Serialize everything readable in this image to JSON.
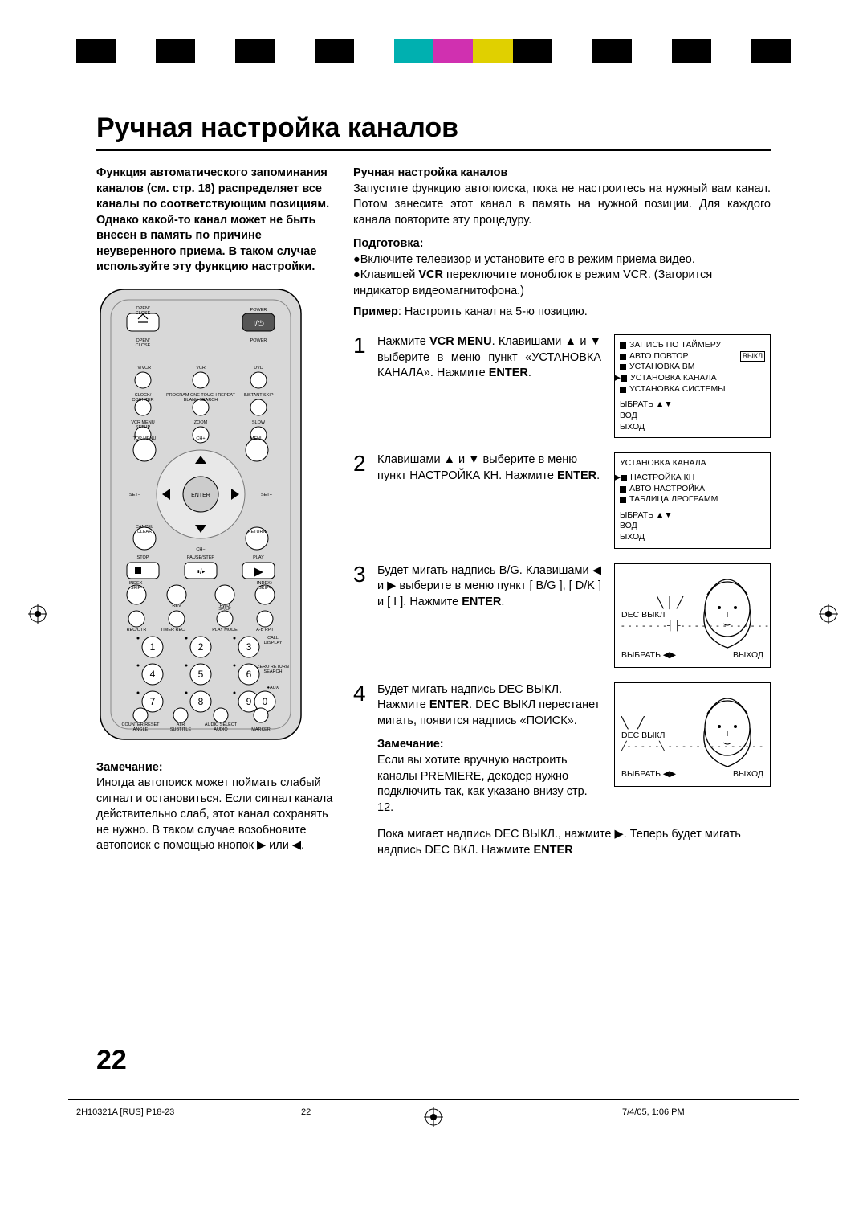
{
  "colorbar": [
    "#000000",
    "#ffffff",
    "#000000",
    "#ffffff",
    "#000000",
    "#ffffff",
    "#000000",
    "#ffffff",
    "#00b0b0",
    "#d030b0",
    "#e0d000",
    "#000000",
    "#ffffff",
    "#000000",
    "#ffffff",
    "#000000",
    "#ffffff",
    "#000000"
  ],
  "title": "Ручная настройка каналов",
  "left": {
    "intro": "Функция автоматического запоминания каналов (см. стр. 18) распределяет все каналы по соответствующим позициям. Однако какой-то канал может не быть внесен в память по причине неуверенного приема. В таком случае используйте эту функцию настройки.",
    "note_head": "Замечание:",
    "note_body": "Иногда автопоиск может поймать слабый сигнал и остановиться. Если сигнал канала действительно слаб, этот канал сохранять не нужно. В таком случае возобновите автопоиск с помощью кнопок ▶ или ◀."
  },
  "right": {
    "h1": "Ручная настройка каналов",
    "p1": "Запустите функцию автопоиска, пока не настроитесь на нужный вам канал. Потом занесите этот канал в память на нужной позиции. Для каждого канала повторите эту процедуру.",
    "h2": "Подготовка:",
    "b1": "Включите телевизор и установите его в режим приема видео.",
    "b2a": "Клавишей ",
    "b2b": "VCR",
    "b2c": " переключите моноблок в режим VCR. (Загорится индикатор видеомагнитофона.)",
    "example_a": "Пример",
    "example_b": ": Настроить канал на 5-ю позицию.",
    "step1_a": "Нажмите ",
    "step1_b": "VCR MENU",
    "step1_c": ". Клавишами ▲ и ▼ выберите в меню пункт «УСТАНОВКА КАНАЛА». Нажмите ",
    "step1_d": "ENTER",
    "step1_e": ".",
    "step2_a": "Клавишами ▲ и ▼ выберите в меню пункт НАСТРОЙКА КН. Нажмите  ",
    "step2_b": "ENTER",
    "step2_c": ".",
    "step3_a": "Будет мигать надпись B/G. Клавишами ◀ и ▶ выберите в меню пункт [ B/G ], [ D/K ] и [ I ]. Нажмите  ",
    "step3_b": "ENTER",
    "step3_c": ".",
    "step4_a": "Будет мигать надпись DEC ВЫКЛ. Нажмите ",
    "step4_b": "ENTER",
    "step4_c": ". DEC ВЫКЛ перестанет мигать, появится надпись «ПОИСК».",
    "note_head": "Замечание:",
    "note_body": "Если вы хотите вручную настроить каналы PREMIERE, декодер нужно подключить так, как указано внизу стр. 12.",
    "tail_a": "Пока мигает надпись DEC ВЫКЛ., нажмите ▶. Теперь будет мигать надпись DEC ВКЛ. Нажмите  ",
    "tail_b": "ENTER"
  },
  "menu1": {
    "l1": "ЗАПИСЬ ПО ТАЙМЕРУ",
    "l2": "АВТО ПОВТОР",
    "tag": "ВЫКЛ",
    "l3": "УСТАНОВКА ВМ",
    "l4": "УСТАНОВКА КАНАЛА",
    "l5": "УСТАНОВКА СИСТЕМЫ",
    "s1": "ЫБРАТЬ  ▲▼",
    "s2": "ВОД",
    "s3": "ЫХОД"
  },
  "menu2": {
    "title": "УСТАНОВКА КАНАЛА",
    "l1": "НАСТРОЙКА КН",
    "l2": "АВТО НАСТРОЙКА",
    "l3": "ТАБЛИЦА ЛРОГРАММ",
    "s1": "ЫБРАТЬ  ▲▼",
    "s2": "ВОД",
    "s3": "ЫХОД"
  },
  "screen": {
    "dec": "DEC ВЫКЛ",
    "select": "ВЫБРАТЬ ◀▶",
    "exit": "ВЫХОД"
  },
  "page_number": "22",
  "footer": {
    "left": "2H10321A [RUS] P18-23",
    "mid": "22",
    "right": "7/4/05, 1:06 PM"
  },
  "remote": {
    "rows": [
      {
        "a": "OPEN/\nCLOSE",
        "b": "",
        "c": "POWER"
      },
      {
        "a": "TV/VCR",
        "b": "VCR",
        "c": "DVD"
      },
      {
        "a": "CLOCK/\nCOUNTER",
        "b": "PROGRAM  ONE TOUCH REPEAT\nBLANK SEARCH",
        "c": "INSTANT SKIP"
      },
      {
        "a": "VCR MENU\nSETUP",
        "b": "ZOOM",
        "c": "SLOW"
      },
      {
        "a": "TOP MENU",
        "b": "CH+",
        "c": "MENU"
      },
      {
        "a": "SET−",
        "b": "ENTER",
        "c": "SET+"
      },
      {
        "a": "CANCEL\nCLEAR",
        "b": "CH−",
        "c": "RETURN"
      },
      {
        "a": "STOP",
        "b": "PAUSE/STEP",
        "c": "PLAY"
      },
      {
        "a": "INDEX-\nSKIP-",
        "b": "REV    FWD",
        "c": "INDEX+\nSKIP+"
      },
      {
        "a": "REC/OTR",
        "b": "TIMER REC  SP/LP\nPLAY MODE",
        "c": "A-B RPT"
      }
    ],
    "numlabels": {
      "call": "CALL\nDISPLAY",
      "zero": "ZERO RETURN\nSEARCH",
      "aux": "AUX"
    },
    "bottom": {
      "a": "COUNTER RESET\nANGLE",
      "b": "ATR\nSUBTITLE",
      "c": "AUDIO SELECT\nAUDIO",
      "d": "MARKER"
    }
  }
}
